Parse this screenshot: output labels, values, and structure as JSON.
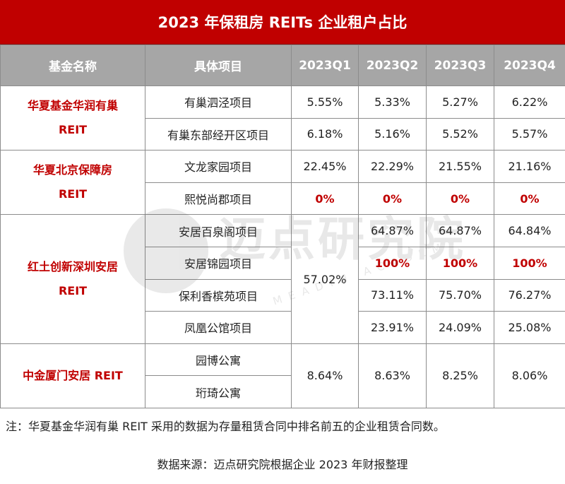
{
  "title": "2023 年保租房 REITs 企业租户占比",
  "headers": [
    "基金名称",
    "具体项目",
    "2023Q1",
    "2023Q2",
    "2023Q3",
    "2023Q4"
  ],
  "funds": [
    {
      "name_line1": "华夏基金华润有巢",
      "name_line2": "REIT"
    },
    {
      "name_line1": "华夏北京保障房",
      "name_line2": "REIT"
    },
    {
      "name_line1": "红土创新深圳安居",
      "name_line2": "REIT"
    },
    {
      "name_line1": "中金厦门安居 REIT",
      "name_line2": ""
    }
  ],
  "projects": [
    "有巢泗泾项目",
    "有巢东部经开区项目",
    "文龙家园项目",
    "熙悦尚郡项目",
    "安居百泉阁项目",
    "安居锦园项目",
    "保利香槟苑项目",
    "凤凰公馆项目",
    "园博公寓",
    "珩琦公寓"
  ],
  "values": {
    "r0": [
      "5.55%",
      "5.33%",
      "5.27%",
      "6.22%"
    ],
    "r1": [
      "6.18%",
      "5.16%",
      "5.52%",
      "5.57%"
    ],
    "r2": [
      "22.45%",
      "22.29%",
      "21.55%",
      "21.16%"
    ],
    "r3": [
      "0%",
      "0%",
      "0%",
      "0%"
    ],
    "hongtu_q1": "57.02%",
    "r4": [
      "64.87%",
      "64.87%",
      "64.84%"
    ],
    "r5": [
      "100%",
      "100%",
      "100%"
    ],
    "r6": [
      "73.11%",
      "75.70%",
      "76.27%"
    ],
    "r7": [
      "23.91%",
      "24.09%",
      "25.08%"
    ],
    "zhongjin": [
      "8.64%",
      "8.63%",
      "8.25%",
      "8.06%"
    ]
  },
  "watermark": {
    "text": "迈点研究院",
    "sub": "MEADIN ACADEMY"
  },
  "note": "注：华夏基金华润有巢 REIT 采用的数据为存量租赁合同中排名前五的企业租赁合同数。",
  "source": "数据来源：迈点研究院根据企业 2023 年财报整理",
  "colors": {
    "title_bg": "#c00000",
    "header_bg": "#a6a6a6",
    "highlight": "#c00000"
  }
}
